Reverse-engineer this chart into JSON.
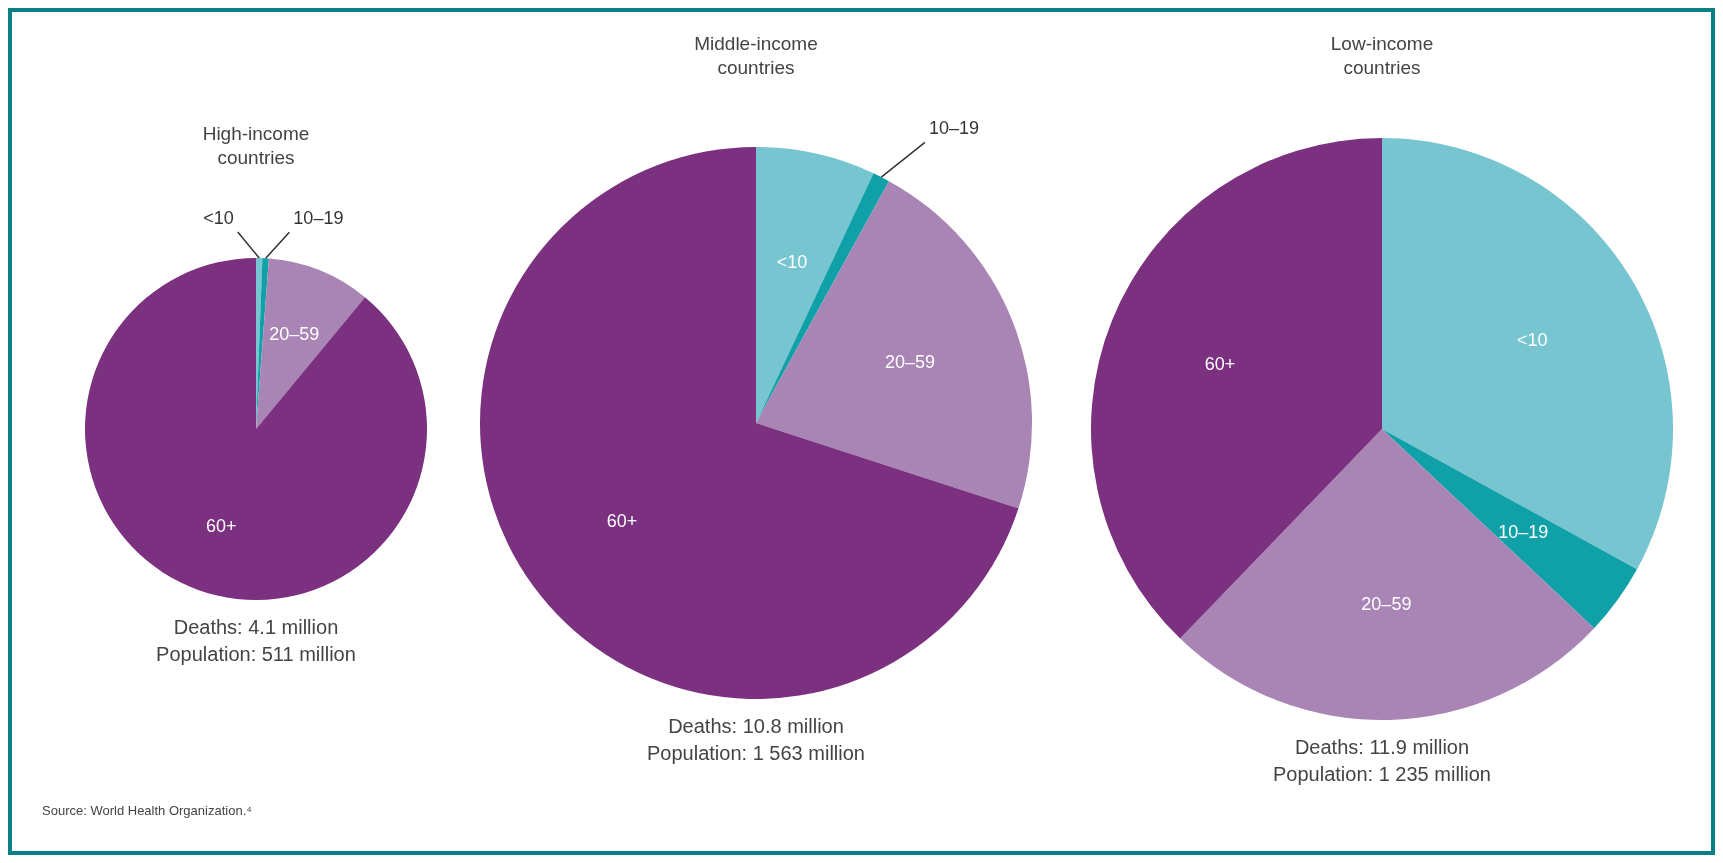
{
  "chart_data": [
    {
      "type": "pie",
      "title": "High-income countries",
      "categories": [
        "<10",
        "10–19",
        "20–59",
        "60+"
      ],
      "values": [
        0.6,
        0.6,
        9.8,
        89
      ],
      "colors": [
        "#76c5d0",
        "#0fa0a8",
        "#a985b5",
        "#7b3080"
      ],
      "annotations": [
        "Deaths: 4.1 million",
        "Population: 511 million",
        "Source: World Health Organization.⁴"
      ]
    },
    {
      "type": "pie",
      "title": "Middle-income countries",
      "categories": [
        "<10",
        "10–19",
        "20–59",
        "60+"
      ],
      "values": [
        7,
        1,
        22,
        70
      ],
      "colors": [
        "#76c5d0",
        "#0fa0a8",
        "#a985b5",
        "#7b3080"
      ],
      "annotations": [
        "Deaths: 10.8 million",
        "Population: 1 563 million"
      ]
    },
    {
      "type": "pie",
      "title": "Low-income countries",
      "categories": [
        "<10",
        "10–19",
        "20–59",
        "60+"
      ],
      "values": [
        33,
        4,
        25.2,
        37.8
      ],
      "colors": [
        "#76c5d0",
        "#0fa0a8",
        "#a985b5",
        "#7b3080"
      ],
      "annotations": [
        "Deaths: 11.9 million",
        "Population: 1 235 million"
      ]
    }
  ]
}
